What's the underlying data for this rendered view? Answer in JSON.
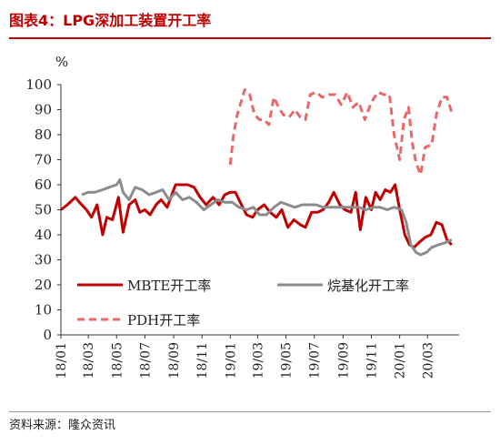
{
  "header": {
    "title": "图表4：LPG深加工装置开工率"
  },
  "footer": {
    "source": "资料来源：隆众资讯"
  },
  "chart_data": {
    "type": "line",
    "ylabel": "%",
    "ylim": [
      0,
      100
    ],
    "yticks": [
      0,
      10,
      20,
      30,
      40,
      50,
      60,
      70,
      80,
      90,
      100
    ],
    "x_range": [
      "2018-01-01",
      "2020-05-08"
    ],
    "xticks": [
      "18/01",
      "18/03",
      "18/05",
      "18/07",
      "18/09",
      "18/11",
      "19/01",
      "19/03",
      "19/05",
      "19/07",
      "19/09",
      "19/11",
      "20/01",
      "20/03"
    ],
    "legend": [
      {
        "name": "MBTE开工率",
        "series": 0
      },
      {
        "name": "烷基化开工率",
        "series": 1
      },
      {
        "name": "PDH开工率",
        "series": 2
      }
    ],
    "series": [
      {
        "name": "MBTE开工率",
        "color": "#c00000",
        "dash": "solid",
        "points": [
          [
            "2018-01-01",
            50
          ],
          [
            "2018-01-15",
            52
          ],
          [
            "2018-02-01",
            55
          ],
          [
            "2018-02-10",
            53
          ],
          [
            "2018-02-25",
            50
          ],
          [
            "2018-03-08",
            47
          ],
          [
            "2018-03-20",
            52
          ],
          [
            "2018-04-01",
            40
          ],
          [
            "2018-04-10",
            47
          ],
          [
            "2018-04-22",
            46
          ],
          [
            "2018-05-05",
            55
          ],
          [
            "2018-05-15",
            41
          ],
          [
            "2018-05-28",
            52
          ],
          [
            "2018-06-10",
            54
          ],
          [
            "2018-06-20",
            49
          ],
          [
            "2018-07-01",
            50
          ],
          [
            "2018-07-12",
            48
          ],
          [
            "2018-07-25",
            52
          ],
          [
            "2018-08-05",
            54
          ],
          [
            "2018-08-18",
            51
          ],
          [
            "2018-08-28",
            56
          ],
          [
            "2018-09-05",
            60
          ],
          [
            "2018-09-20",
            60
          ],
          [
            "2018-10-01",
            60
          ],
          [
            "2018-10-15",
            59
          ],
          [
            "2018-10-28",
            55
          ],
          [
            "2018-11-10",
            52
          ],
          [
            "2018-11-25",
            55
          ],
          [
            "2018-12-08",
            52
          ],
          [
            "2018-12-20",
            56
          ],
          [
            "2019-01-01",
            57
          ],
          [
            "2019-01-12",
            57
          ],
          [
            "2019-01-25",
            52
          ],
          [
            "2019-02-05",
            48
          ],
          [
            "2019-02-18",
            47
          ],
          [
            "2019-03-01",
            50
          ],
          [
            "2019-03-15",
            52
          ],
          [
            "2019-03-28",
            49
          ],
          [
            "2019-04-10",
            47
          ],
          [
            "2019-04-22",
            50
          ],
          [
            "2019-05-05",
            43
          ],
          [
            "2019-05-18",
            46
          ],
          [
            "2019-06-01",
            44
          ],
          [
            "2019-06-12",
            43
          ],
          [
            "2019-06-25",
            49
          ],
          [
            "2019-07-08",
            49
          ],
          [
            "2019-07-20",
            50
          ],
          [
            "2019-08-01",
            53
          ],
          [
            "2019-08-12",
            57
          ],
          [
            "2019-08-25",
            52
          ],
          [
            "2019-09-05",
            50
          ],
          [
            "2019-09-18",
            49
          ],
          [
            "2019-09-28",
            57
          ],
          [
            "2019-10-08",
            42
          ],
          [
            "2019-10-20",
            55
          ],
          [
            "2019-11-01",
            50
          ],
          [
            "2019-11-10",
            57
          ],
          [
            "2019-11-20",
            54
          ],
          [
            "2019-12-01",
            58
          ],
          [
            "2019-12-12",
            57
          ],
          [
            "2019-12-22",
            60
          ],
          [
            "2020-01-01",
            50
          ],
          [
            "2020-01-12",
            40
          ],
          [
            "2020-01-22",
            36
          ],
          [
            "2020-02-01",
            35
          ],
          [
            "2020-02-12",
            37
          ],
          [
            "2020-02-25",
            39
          ],
          [
            "2020-03-08",
            40
          ],
          [
            "2020-03-20",
            45
          ],
          [
            "2020-04-01",
            44
          ],
          [
            "2020-04-12",
            38
          ],
          [
            "2020-04-22",
            36
          ]
        ]
      },
      {
        "name": "烷基化开工率",
        "color": "#8c8c8c",
        "dash": "solid",
        "points": [
          [
            "2018-02-15",
            56
          ],
          [
            "2018-03-01",
            57
          ],
          [
            "2018-03-15",
            57
          ],
          [
            "2018-04-01",
            58
          ],
          [
            "2018-04-15",
            59
          ],
          [
            "2018-05-01",
            60
          ],
          [
            "2018-05-08",
            62
          ],
          [
            "2018-05-15",
            57
          ],
          [
            "2018-05-28",
            54
          ],
          [
            "2018-06-10",
            59
          ],
          [
            "2018-06-25",
            58
          ],
          [
            "2018-07-10",
            56
          ],
          [
            "2018-07-25",
            57
          ],
          [
            "2018-08-08",
            58
          ],
          [
            "2018-08-22",
            54
          ],
          [
            "2018-09-05",
            57
          ],
          [
            "2018-09-20",
            54
          ],
          [
            "2018-10-05",
            55
          ],
          [
            "2018-10-20",
            53
          ],
          [
            "2018-11-05",
            50
          ],
          [
            "2018-11-20",
            52
          ],
          [
            "2018-12-05",
            54
          ],
          [
            "2018-12-20",
            53
          ],
          [
            "2019-01-05",
            53
          ],
          [
            "2019-01-20",
            51
          ],
          [
            "2019-02-05",
            50
          ],
          [
            "2019-02-20",
            51
          ],
          [
            "2019-03-05",
            48
          ],
          [
            "2019-03-20",
            48
          ],
          [
            "2019-04-05",
            51
          ],
          [
            "2019-04-20",
            53
          ],
          [
            "2019-05-05",
            52
          ],
          [
            "2019-05-20",
            51
          ],
          [
            "2019-06-05",
            52
          ],
          [
            "2019-06-20",
            52
          ],
          [
            "2019-07-05",
            52
          ],
          [
            "2019-07-20",
            51
          ],
          [
            "2019-08-05",
            51
          ],
          [
            "2019-08-20",
            51
          ],
          [
            "2019-09-05",
            51
          ],
          [
            "2019-09-20",
            51
          ],
          [
            "2019-10-05",
            51
          ],
          [
            "2019-10-20",
            50
          ],
          [
            "2019-11-05",
            51
          ],
          [
            "2019-11-20",
            51
          ],
          [
            "2019-12-05",
            50
          ],
          [
            "2019-12-20",
            51
          ],
          [
            "2020-01-05",
            50
          ],
          [
            "2020-01-15",
            45
          ],
          [
            "2020-01-25",
            36
          ],
          [
            "2020-02-05",
            33
          ],
          [
            "2020-02-15",
            32
          ],
          [
            "2020-02-28",
            33
          ],
          [
            "2020-03-10",
            35
          ],
          [
            "2020-03-25",
            36
          ],
          [
            "2020-04-10",
            37
          ],
          [
            "2020-04-22",
            38
          ]
        ]
      },
      {
        "name": "PDH开工率",
        "color": "#e8686a",
        "dash": "dashed",
        "points": [
          [
            "2019-01-01",
            68
          ],
          [
            "2019-01-08",
            80
          ],
          [
            "2019-01-16",
            88
          ],
          [
            "2019-01-24",
            93
          ],
          [
            "2019-02-01",
            98
          ],
          [
            "2019-02-12",
            96
          ],
          [
            "2019-02-22",
            88
          ],
          [
            "2019-03-05",
            86
          ],
          [
            "2019-03-15",
            86
          ],
          [
            "2019-03-25",
            84
          ],
          [
            "2019-04-05",
            95
          ],
          [
            "2019-04-15",
            91
          ],
          [
            "2019-04-25",
            88
          ],
          [
            "2019-05-08",
            87
          ],
          [
            "2019-05-20",
            90
          ],
          [
            "2019-06-01",
            87
          ],
          [
            "2019-06-12",
            86
          ],
          [
            "2019-06-22",
            96
          ],
          [
            "2019-07-05",
            97
          ],
          [
            "2019-07-18",
            95
          ],
          [
            "2019-08-01",
            96
          ],
          [
            "2019-08-15",
            96
          ],
          [
            "2019-08-28",
            92
          ],
          [
            "2019-09-10",
            97
          ],
          [
            "2019-09-22",
            91
          ],
          [
            "2019-10-05",
            93
          ],
          [
            "2019-10-18",
            86
          ],
          [
            "2019-11-01",
            93
          ],
          [
            "2019-11-15",
            97
          ],
          [
            "2019-11-28",
            96
          ],
          [
            "2019-12-10",
            96
          ],
          [
            "2019-12-20",
            80
          ],
          [
            "2020-01-01",
            70
          ],
          [
            "2020-01-10",
            86
          ],
          [
            "2020-01-20",
            91
          ],
          [
            "2020-01-28",
            77
          ],
          [
            "2020-02-05",
            69
          ],
          [
            "2020-02-15",
            64
          ],
          [
            "2020-02-25",
            75
          ],
          [
            "2020-03-10",
            76
          ],
          [
            "2020-03-20",
            88
          ],
          [
            "2020-04-01",
            95
          ],
          [
            "2020-04-12",
            95
          ],
          [
            "2020-04-22",
            89
          ]
        ]
      }
    ]
  }
}
